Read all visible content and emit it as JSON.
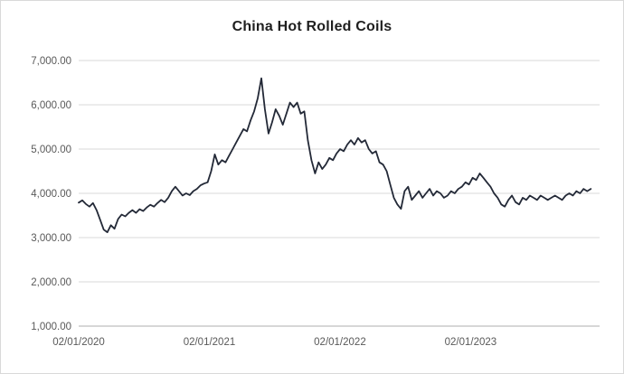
{
  "chart_data": {
    "type": "line",
    "title": "China Hot Rolled Coils",
    "xlabel": "",
    "ylabel": "",
    "legend": "none",
    "grid": true,
    "ylim": [
      1000,
      7000
    ],
    "y_tick_step": 1000,
    "y_tick_labels": [
      "1,000.00",
      "2,000.00",
      "3,000.00",
      "4,000.00",
      "5,000.00",
      "6,000.00",
      "7,000.00"
    ],
    "x_tick_labels": [
      "02/01/2020",
      "02/01/2021",
      "02/01/2022",
      "02/01/2023"
    ],
    "x_unit": "years_from_first_tick",
    "x_years_span": 3.987,
    "points_t_step": 0.02741,
    "values": [
      3790,
      3840,
      3760,
      3700,
      3780,
      3620,
      3400,
      3180,
      3120,
      3280,
      3200,
      3420,
      3520,
      3480,
      3560,
      3620,
      3560,
      3640,
      3600,
      3680,
      3740,
      3700,
      3780,
      3850,
      3800,
      3900,
      4050,
      4150,
      4050,
      3950,
      4000,
      3960,
      4050,
      4100,
      4180,
      4220,
      4250,
      4500,
      4880,
      4650,
      4750,
      4700,
      4850,
      5000,
      5150,
      5300,
      5450,
      5400,
      5650,
      5850,
      6150,
      6600,
      5900,
      5350,
      5600,
      5900,
      5750,
      5550,
      5800,
      6050,
      5950,
      6050,
      5800,
      5850,
      5200,
      4750,
      4450,
      4700,
      4550,
      4650,
      4800,
      4750,
      4900,
      5000,
      4950,
      5100,
      5200,
      5100,
      5250,
      5150,
      5200,
      5000,
      4900,
      4950,
      4700,
      4650,
      4500,
      4200,
      3900,
      3750,
      3650,
      4050,
      4150,
      3850,
      3950,
      4050,
      3900,
      4000,
      4100,
      3950,
      4050,
      4000,
      3900,
      3950,
      4050,
      4000,
      4100,
      4150,
      4250,
      4200,
      4350,
      4300,
      4450,
      4350,
      4250,
      4150,
      4000,
      3900,
      3750,
      3700,
      3850,
      3950,
      3800,
      3750,
      3900,
      3850,
      3950,
      3900,
      3850,
      3950,
      3900,
      3850,
      3900,
      3950,
      3900,
      3850,
      3950,
      4000,
      3950,
      4050,
      4000,
      4100,
      4050,
      4100
    ],
    "line_color": "#232937",
    "gridline_color": "#d9d9d9",
    "axis_color": "#bfbfbf",
    "tick_label_color": "#595959",
    "title_color": "#1f1f1f",
    "background_color": "#ffffff"
  }
}
